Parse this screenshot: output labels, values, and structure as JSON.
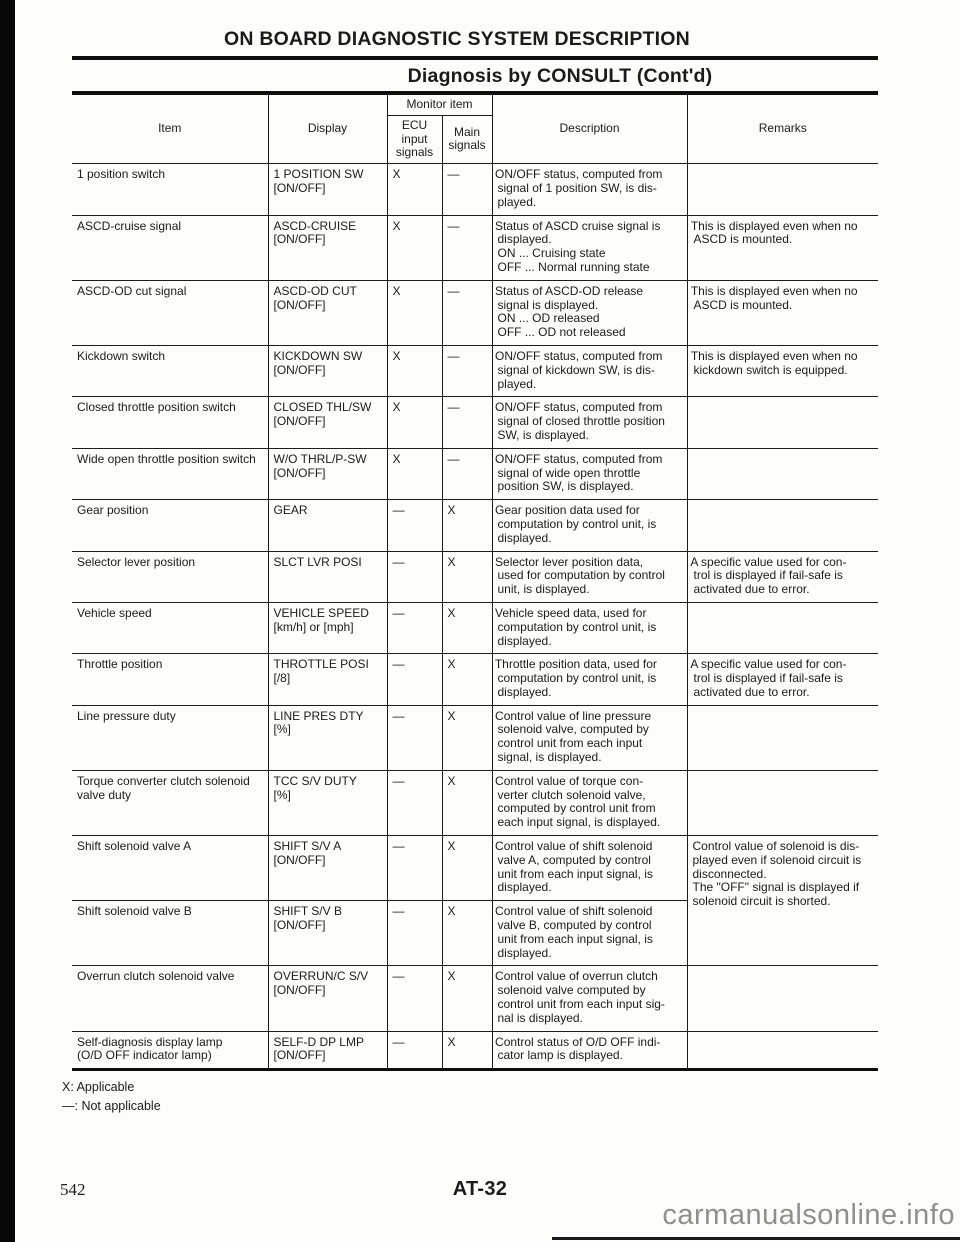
{
  "page": {
    "heading": "ON BOARD DIAGNOSTIC SYSTEM DESCRIPTION",
    "subheading": "Diagnosis by CONSULT (Cont'd)",
    "page_number": "542",
    "section_code": "AT-32",
    "watermark": "carmanualsonline.info"
  },
  "table": {
    "headers": {
      "item": "Item",
      "display": "Display",
      "monitor": "Monitor item",
      "ecu": [
        "ECU",
        "input",
        "signals"
      ],
      "main": [
        "Main",
        "signals"
      ],
      "description": "Description",
      "remarks": "Remarks"
    },
    "rows": [
      {
        "item": "1 position switch",
        "display": [
          "1 POSITION SW",
          "[ON/OFF]"
        ],
        "ecu": "X",
        "main": "—",
        "desc": [
          "• ON/OFF status, computed from",
          "signal of 1 position SW, is dis-",
          "played."
        ],
        "remarks": []
      },
      {
        "item": "ASCD-cruise signal",
        "display": [
          "ASCD-CRUISE",
          "[ON/OFF]"
        ],
        "ecu": "X",
        "main": "—",
        "desc": [
          "• Status of ASCD cruise signal is",
          "displayed.",
          "ON ... Cruising state",
          "OFF ... Normal running state"
        ],
        "remarks": [
          "• This is displayed even when no",
          "ASCD is mounted."
        ],
        "remarks_bullet": true
      },
      {
        "item": "ASCD-OD cut signal",
        "display": [
          "ASCD-OD CUT",
          "[ON/OFF]"
        ],
        "ecu": "X",
        "main": "—",
        "desc": [
          "• Status of ASCD-OD release",
          "signal is displayed.",
          "ON ... OD released",
          "OFF ... OD not released"
        ],
        "remarks": [
          "• This is displayed even when no",
          "ASCD is mounted."
        ],
        "remarks_bullet": true
      },
      {
        "item": "Kickdown switch",
        "display": [
          "KICKDOWN SW",
          "[ON/OFF]"
        ],
        "ecu": "X",
        "main": "—",
        "desc": [
          "• ON/OFF status, computed from",
          "signal of kickdown SW, is dis-",
          "played."
        ],
        "remarks": [
          "• This is displayed even when no",
          "kickdown switch is equipped."
        ],
        "remarks_bullet": true
      },
      {
        "item": "Closed throttle position switch",
        "display": [
          "CLOSED THL/SW",
          "[ON/OFF]"
        ],
        "ecu": "X",
        "main": "—",
        "desc": [
          "• ON/OFF status, computed from",
          "signal of closed throttle position",
          "SW, is displayed."
        ],
        "remarks": []
      },
      {
        "item": "Wide open throttle position switch",
        "display": [
          "W/O THRL/P-SW",
          "[ON/OFF]"
        ],
        "ecu": "X",
        "main": "—",
        "desc": [
          "• ON/OFF status, computed from",
          "signal of wide open throttle",
          "position SW, is displayed."
        ],
        "remarks": []
      },
      {
        "item": "Gear position",
        "display": [
          "GEAR"
        ],
        "ecu": "—",
        "main": "X",
        "desc": [
          "• Gear position data used for",
          "computation by control unit, is",
          "displayed."
        ],
        "remarks": []
      },
      {
        "item": "Selector lever position",
        "display": [
          "SLCT LVR POSI"
        ],
        "ecu": "—",
        "main": "X",
        "desc": [
          "• Selector lever position data,",
          "used for computation by control",
          "unit, is displayed."
        ],
        "remarks": [
          "• A specific value used for con-",
          "trol is displayed if fail-safe is",
          "activated due to error."
        ],
        "remarks_bullet": true
      },
      {
        "item": "Vehicle speed",
        "display": [
          "VEHICLE SPEED",
          "[km/h] or [mph]"
        ],
        "ecu": "—",
        "main": "X",
        "desc": [
          "• Vehicle speed data, used for",
          "computation by control unit, is",
          "displayed."
        ],
        "remarks": []
      },
      {
        "item": "Throttle position",
        "display": [
          "THROTTLE POSI",
          "[/8]"
        ],
        "ecu": "—",
        "main": "X",
        "desc": [
          "• Throttle position data, used for",
          "computation by control unit, is",
          "displayed."
        ],
        "remarks": [
          "• A specific value used for con-",
          "trol is displayed if fail-safe is",
          "activated due to error."
        ],
        "remarks_bullet": true
      },
      {
        "item": "Line pressure duty",
        "display": [
          "LINE PRES DTY",
          "[%]"
        ],
        "ecu": "—",
        "main": "X",
        "desc": [
          "• Control value of line pressure",
          "solenoid valve, computed by",
          "control unit from each input",
          "signal, is displayed."
        ],
        "remarks": []
      },
      {
        "item": [
          "Torque converter clutch solenoid",
          "valve duty"
        ],
        "display": [
          "TCC S/V DUTY",
          "[%]"
        ],
        "ecu": "—",
        "main": "X",
        "desc": [
          "• Control value of torque con-",
          "verter clutch solenoid valve,",
          "computed by control unit from",
          "each input signal, is displayed."
        ],
        "remarks": []
      },
      {
        "item": "Shift solenoid valve A",
        "display": [
          "SHIFT S/V A",
          "[ON/OFF]"
        ],
        "ecu": "—",
        "main": "X",
        "desc": [
          "• Control value of shift solenoid",
          "valve A, computed by control",
          "unit from each input signal, is",
          "displayed."
        ],
        "remarks": [
          "Control value of solenoid is dis-",
          "played even if solenoid circuit is",
          "disconnected.",
          "The \"OFF\" signal is displayed if",
          "solenoid circuit is shorted."
        ],
        "remarks_span": 2
      },
      {
        "item": "Shift solenoid valve B",
        "display": [
          "SHIFT S/V B",
          "[ON/OFF]"
        ],
        "ecu": "—",
        "main": "X",
        "desc": [
          "• Control value of shift solenoid",
          "valve B, computed by control",
          "unit from each input signal, is",
          "displayed."
        ],
        "remarks": null
      },
      {
        "item": "Overrun clutch solenoid valve",
        "display": [
          "OVERRUN/C S/V",
          "[ON/OFF]"
        ],
        "ecu": "—",
        "main": "X",
        "desc": [
          "• Control value of overrun clutch",
          "solenoid valve computed by",
          "control unit from each input sig-",
          "nal is displayed."
        ],
        "remarks": []
      },
      {
        "item": [
          "Self-diagnosis display lamp",
          "(O/D OFF indicator lamp)"
        ],
        "display": [
          "SELF-D DP LMP",
          "[ON/OFF]"
        ],
        "ecu": "—",
        "main": "X",
        "desc": [
          "• Control status of O/D OFF indi-",
          "cator lamp is displayed."
        ],
        "remarks": []
      }
    ],
    "legend": [
      "X: Applicable",
      "—: Not applicable"
    ]
  }
}
